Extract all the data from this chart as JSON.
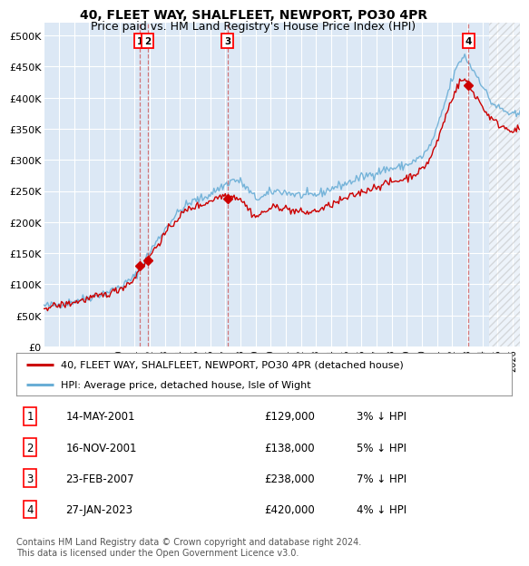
{
  "title": "40, FLEET WAY, SHALFLEET, NEWPORT, PO30 4PR",
  "subtitle": "Price paid vs. HM Land Registry's House Price Index (HPI)",
  "yticks": [
    0,
    50000,
    100000,
    150000,
    200000,
    250000,
    300000,
    350000,
    400000,
    450000,
    500000
  ],
  "ytick_labels": [
    "£0",
    "£50K",
    "£100K",
    "£150K",
    "£200K",
    "£250K",
    "£300K",
    "£350K",
    "£400K",
    "£450K",
    "£500K"
  ],
  "xlim_start": 1995.0,
  "xlim_end": 2026.5,
  "ylim": [
    0,
    520000
  ],
  "plot_bg_color": "#dce8f5",
  "grid_color": "#ffffff",
  "hpi_color": "#6aaed6",
  "price_color": "#cc0000",
  "hatch_start": 2024.42,
  "transactions": [
    {
      "num": 1,
      "date": "14-MAY-2001",
      "price": 129000,
      "x": 2001.37,
      "hpi_pct": "3% ↓ HPI"
    },
    {
      "num": 2,
      "date": "16-NOV-2001",
      "price": 138000,
      "x": 2001.88,
      "hpi_pct": "5% ↓ HPI"
    },
    {
      "num": 3,
      "date": "23-FEB-2007",
      "price": 238000,
      "x": 2007.14,
      "hpi_pct": "7% ↓ HPI"
    },
    {
      "num": 4,
      "date": "27-JAN-2023",
      "price": 420000,
      "x": 2023.07,
      "hpi_pct": "4% ↓ HPI"
    }
  ],
  "legend_label_price": "40, FLEET WAY, SHALFLEET, NEWPORT, PO30 4PR (detached house)",
  "legend_label_hpi": "HPI: Average price, detached house, Isle of Wight",
  "footer": "Contains HM Land Registry data © Crown copyright and database right 2024.\nThis data is licensed under the Open Government Licence v3.0.",
  "xticks": [
    1995,
    1996,
    1997,
    1998,
    1999,
    2000,
    2001,
    2002,
    2003,
    2004,
    2005,
    2006,
    2007,
    2008,
    2009,
    2010,
    2011,
    2012,
    2013,
    2014,
    2015,
    2016,
    2017,
    2018,
    2019,
    2020,
    2021,
    2022,
    2023,
    2024,
    2025,
    2026
  ]
}
